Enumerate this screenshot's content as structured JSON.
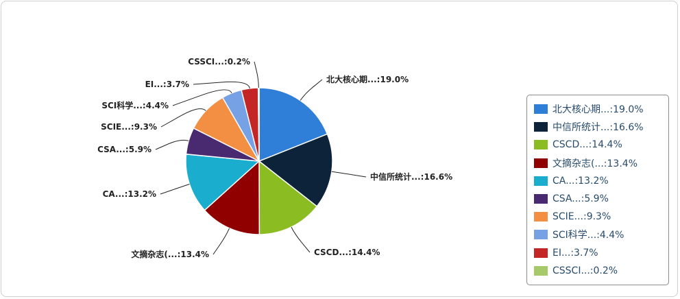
{
  "chart_data": {
    "type": "pie",
    "legend_position": "right",
    "slices": [
      {
        "label": "北大核心期...:19.0%",
        "value": 19.0,
        "color": "#2f7ed8"
      },
      {
        "label": "中信所统计...:16.6%",
        "value": 16.6,
        "color": "#0d233a"
      },
      {
        "label": "CSCD...:14.4%",
        "value": 14.4,
        "color": "#8bbc21"
      },
      {
        "label": "文摘杂志(...:13.4%",
        "value": 13.4,
        "color": "#910000"
      },
      {
        "label": "CA...:13.2%",
        "value": 13.2,
        "color": "#1aadce"
      },
      {
        "label": "CSA...:5.9%",
        "value": 5.9,
        "color": "#492970"
      },
      {
        "label": "SCIE...:9.3%",
        "value": 9.3,
        "color": "#f28f43"
      },
      {
        "label": "SCI科学...:4.4%",
        "value": 4.4,
        "color": "#77a1e5"
      },
      {
        "label": "EI...:3.7%",
        "value": 3.7,
        "color": "#c42525"
      },
      {
        "label": "CSSCI...:0.2%",
        "value": 0.2,
        "color": "#a6c96a"
      }
    ]
  }
}
